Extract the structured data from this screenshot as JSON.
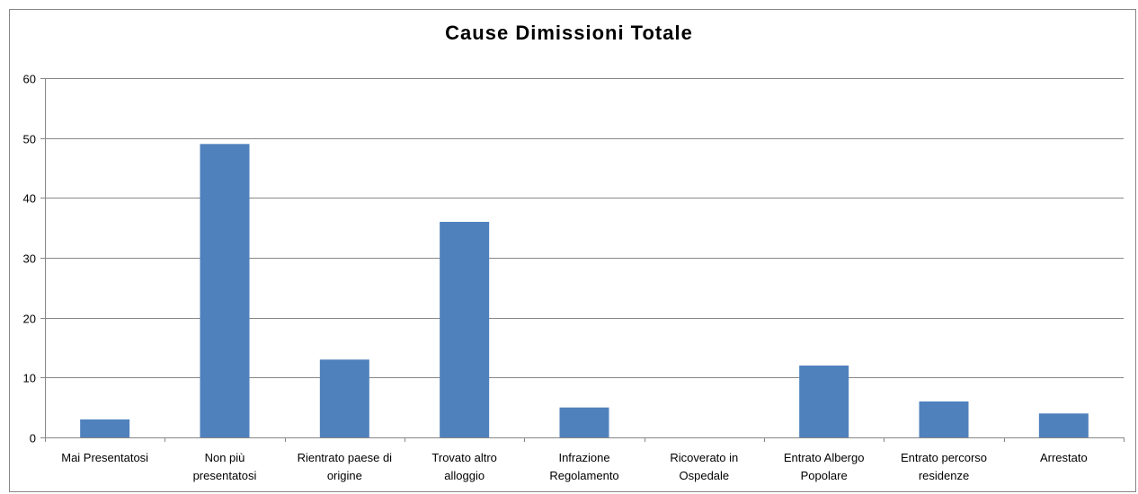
{
  "chart_data": {
    "type": "bar",
    "title": "Cause Dimissioni Totale",
    "xlabel": "",
    "ylabel": "",
    "categories": [
      [
        "Mai Presentatosi"
      ],
      [
        "Non più",
        "presentatosi"
      ],
      [
        "Rientrato paese di",
        "origine"
      ],
      [
        "Trovato altro",
        "alloggio"
      ],
      [
        "Infrazione",
        "Regolamento"
      ],
      [
        "Ricoverato in",
        "Ospedale"
      ],
      [
        "Entrato Albergo",
        "Popolare"
      ],
      [
        "Entrato percorso",
        "residenze"
      ],
      [
        "Arrestato"
      ]
    ],
    "series": [
      {
        "values": [
          3,
          49,
          13,
          36,
          5,
          0,
          12,
          6,
          4
        ]
      }
    ],
    "ylim": [
      0,
      60
    ],
    "yticks": [
      0,
      10,
      20,
      30,
      40,
      50,
      60
    ],
    "grid": true,
    "legend": "none",
    "colors": {
      "bar": "#4f81bd",
      "grid": "#878787",
      "axis": "#878787",
      "frame": "#878787"
    }
  }
}
